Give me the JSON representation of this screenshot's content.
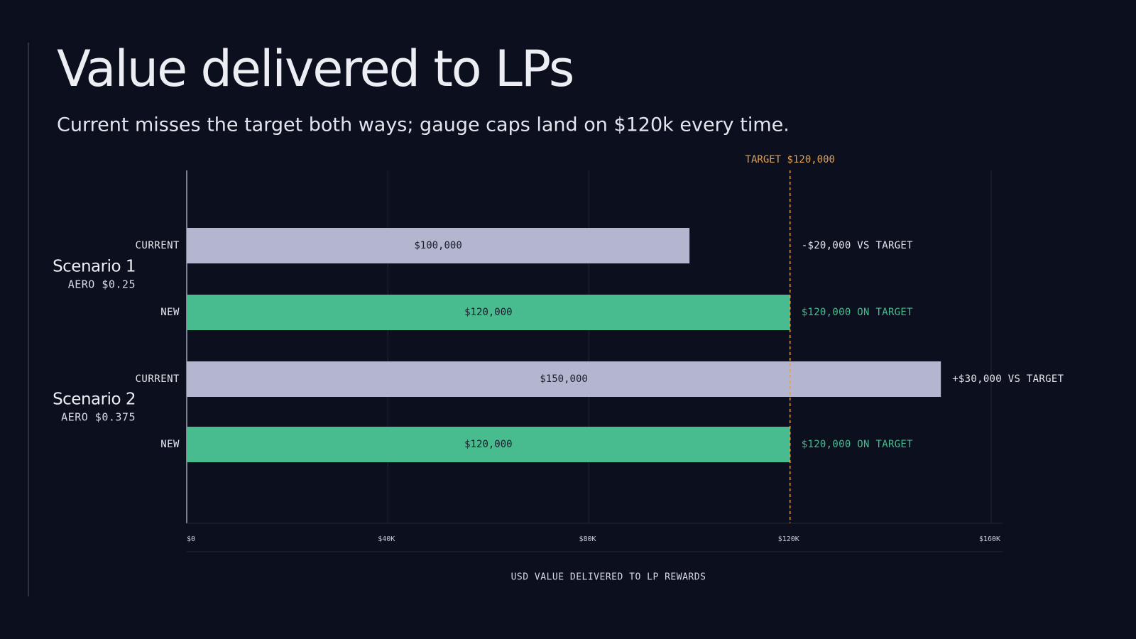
{
  "chart_data": {
    "type": "bar",
    "orientation": "horizontal",
    "title": "Value delivered to LPs",
    "subtitle": "Current misses the target both ways; gauge caps land on $120k every time.",
    "x_label": "USD VALUE DELIVERED TO LP REWARDS",
    "groups": [
      {
        "name": "Scenario 1",
        "note": "AERO $0.25",
        "bars": [
          {
            "category": "CURRENT",
            "value": 100000,
            "value_label": "$100,000",
            "annotation": "-$20,000 VS TARGET",
            "color": "#b4b6cf",
            "annotation_color": "#e6e7ee"
          },
          {
            "category": "NEW",
            "value": 120000,
            "value_label": "$120,000",
            "annotation": "$120,000 ON TARGET",
            "color": "#48bb8f",
            "annotation_color": "#48bb8f"
          }
        ]
      },
      {
        "name": "Scenario 2",
        "note": "AERO $0.375",
        "bars": [
          {
            "category": "CURRENT",
            "value": 150000,
            "value_label": "$150,000",
            "annotation": "+$30,000 VS TARGET",
            "color": "#b4b6cf",
            "annotation_color": "#e6e7ee"
          },
          {
            "category": "NEW",
            "value": 120000,
            "value_label": "$120,000",
            "annotation": "$120,000 ON TARGET",
            "color": "#48bb8f",
            "annotation_color": "#48bb8f"
          }
        ]
      }
    ],
    "target": {
      "value": 120000,
      "label": "TARGET $120,000",
      "color": "#e0a050"
    },
    "xlim": [
      0,
      160000
    ],
    "xticks": [
      {
        "value": 0,
        "label": "$0"
      },
      {
        "value": 40000,
        "label": "$40K"
      },
      {
        "value": 80000,
        "label": "$80K"
      },
      {
        "value": 120000,
        "label": "$120K"
      },
      {
        "value": 160000,
        "label": "$160K"
      }
    ],
    "grid": true
  }
}
